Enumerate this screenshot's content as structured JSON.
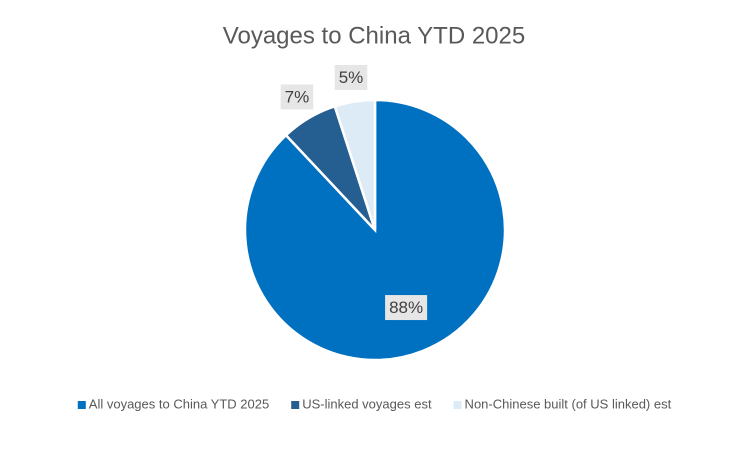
{
  "chart_data": {
    "type": "pie",
    "title": "Voyages to China YTD 2025",
    "categories": [
      "All voyages to China YTD 2025",
      "US-linked voyages est",
      "Non-Chinese built (of US linked) est"
    ],
    "values": [
      88,
      7,
      5
    ],
    "value_labels": [
      "88%",
      "7%",
      "5%"
    ],
    "colors": [
      "#0070c0",
      "#255e91",
      "#ddebf7"
    ],
    "legend": "bottom"
  }
}
